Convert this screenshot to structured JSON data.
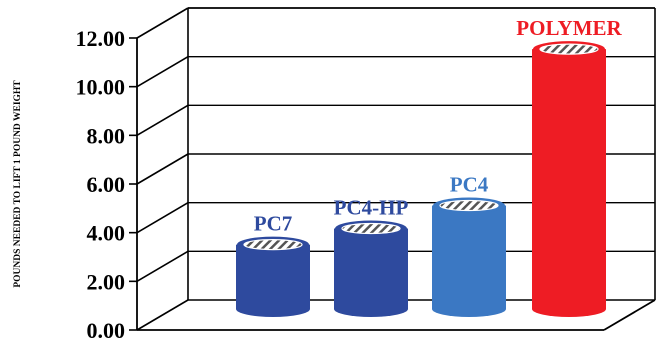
{
  "chart_data": {
    "type": "bar",
    "style": "3d-cylinder",
    "categories": [
      "PC7",
      "PC4-HP",
      "PC4",
      "POLYMER"
    ],
    "values": [
      2.8,
      3.5,
      4.5,
      11.3
    ],
    "colors": [
      "#2e4a9e",
      "#2e4a9e",
      "#3b78c3",
      "#ee1c24"
    ],
    "label_colors": [
      "#2e4a9e",
      "#2e4a9e",
      "#3b78c3",
      "#ee1c24"
    ],
    "ylabel": "POUNDS NEEDED TO LIFT 1 POUND WEIGHT",
    "ylim": [
      0,
      12
    ],
    "yticks": [
      "0.00",
      "2.00",
      "4.00",
      "6.00",
      "8.00",
      "10.00",
      "12.00"
    ],
    "grid": true,
    "legend": "none"
  }
}
